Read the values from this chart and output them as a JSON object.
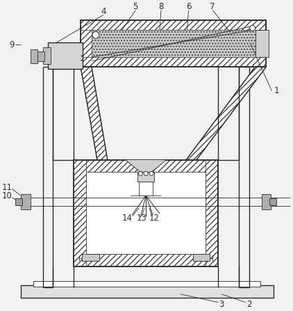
{
  "bg_color": "#f2f2f2",
  "line_color": "#2a2a2a",
  "hatch_color": "#444444",
  "label_color": "#2a2a2a",
  "title": "",
  "figsize": [
    4.22,
    4.47
  ],
  "dpi": 100
}
